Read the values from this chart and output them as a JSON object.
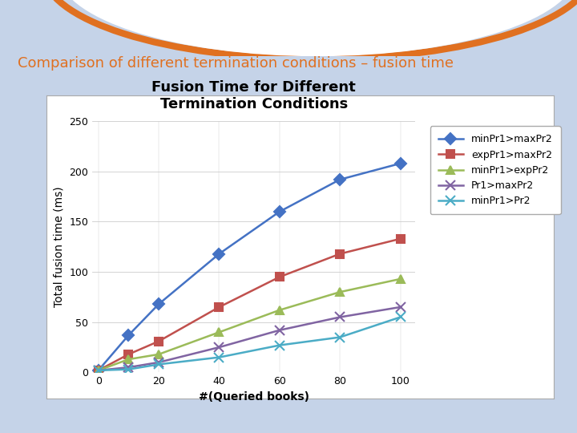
{
  "title": "Fusion Time for Different\nTermination Conditions",
  "xlabel": "#(Queried books)",
  "ylabel": "Total fusion time (ms)",
  "x": [
    0,
    10,
    20,
    40,
    60,
    80,
    100
  ],
  "series": [
    {
      "label": "minPr1>maxPr2",
      "color": "#4472C4",
      "marker": "D",
      "values": [
        2,
        37,
        68,
        118,
        160,
        192,
        208
      ]
    },
    {
      "label": "expPr1>maxPr2",
      "color": "#C0504D",
      "marker": "s",
      "values": [
        2,
        18,
        31,
        65,
        95,
        118,
        133
      ]
    },
    {
      "label": "minPr1>expPr2",
      "color": "#9BBB59",
      "marker": "^",
      "values": [
        2,
        13,
        18,
        40,
        62,
        80,
        93
      ]
    },
    {
      "label": "Pr1>maxPr2",
      "color": "#8064A2",
      "marker": "x",
      "values": [
        2,
        5,
        10,
        25,
        42,
        55,
        65
      ]
    },
    {
      "label": "minPr1>Pr2",
      "color": "#4BACC6",
      "marker": "x",
      "values": [
        2,
        3,
        8,
        15,
        27,
        35,
        55
      ]
    }
  ],
  "ylim": [
    0,
    250
  ],
  "xlim": [
    -2,
    105
  ],
  "yticks": [
    0,
    50,
    100,
    150,
    200,
    250
  ],
  "xticks": [
    0,
    20,
    40,
    60,
    80,
    100
  ],
  "slide_bg": "#C5D3E8",
  "chart_bg": "#FFFFFF",
  "header_bg": "#1F3E7A",
  "header_text": "Comparison of different termination conditions – fusion time",
  "header_color": "#E07020",
  "title_fontsize": 13,
  "axis_label_fontsize": 10,
  "legend_fontsize": 9
}
